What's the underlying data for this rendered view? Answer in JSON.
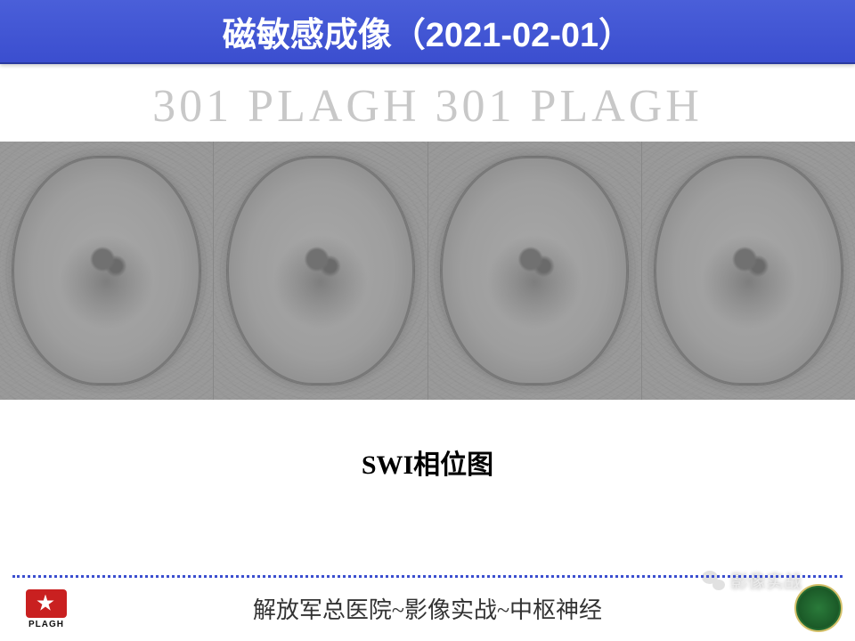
{
  "title_bar": {
    "text": "磁敏感成像（2021-02-01）",
    "background_gradient": [
      "#4a5fd9",
      "#3b4ecf"
    ],
    "text_color": "#ffffff",
    "font_size_pt": 28
  },
  "watermark": {
    "text": "301 PLAGH  301 PLAGH",
    "color": "#c8c8c8",
    "font_family": "Times New Roman",
    "font_size_pt": 40
  },
  "scan_strip": {
    "type": "medical-image-row",
    "modality": "SWI phase map",
    "count": 4,
    "background_color": "#9a9a9a",
    "tissue_color": "#a8a8a8",
    "lesion_color": "#6f6f6f"
  },
  "caption": {
    "text": "SWI相位图",
    "color": "#000000",
    "font_size_pt": 22,
    "font_weight": "bold"
  },
  "footer": {
    "divider_color": "#3b4ecf",
    "text": "解放军总医院~影像实战~中枢神经",
    "text_color": "#333333",
    "font_size_pt": 20,
    "logo_left_label": "PLAGH",
    "logo_left_accent": "#c92020",
    "logo_right_color": "#1d5e2a"
  },
  "overlay": {
    "channel_label": "影像实战",
    "icon": "wechat-icon",
    "color": "#e8e8e8"
  }
}
